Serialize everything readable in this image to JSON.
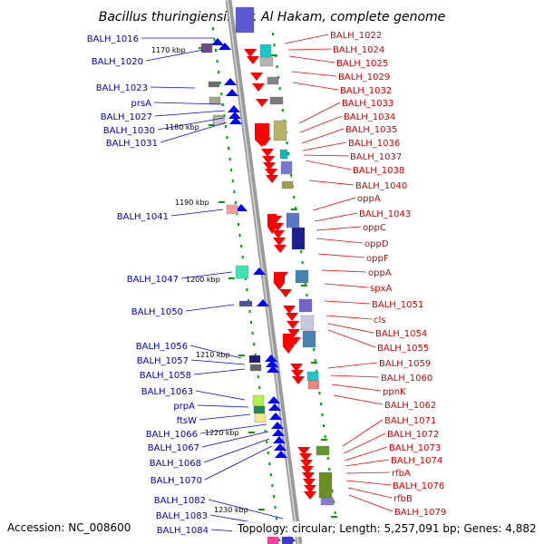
{
  "title": "Bacillus thuringiensis str. Al Hakam, complete genome",
  "footer": {
    "accession": "Accession: NC_008600",
    "summary": "Topology: circular; Length: 5,257,091 bp; Genes: 4,882"
  },
  "kbp_labels": [
    "1170 kbp",
    "1180 kbp",
    "1190 kbp",
    "1200 kbp",
    "1210 kbp",
    "1220 kbp",
    "1230 kbp"
  ],
  "left_genes": [
    "BALH_1016",
    "BALH_1020",
    "BALH_1023",
    "prsA",
    "BALH_1027",
    "BALH_1030",
    "BALH_1031",
    "BALH_1041",
    "BALH_1047",
    "BALH_1050",
    "BALH_1056",
    "BALH_1057",
    "BALH_1058",
    "BALH_1063",
    "prpA",
    "ftsW",
    "BALH_1066",
    "BALH_1067",
    "BALH_1068",
    "BALH_1070",
    "BALH_1082",
    "BALH_1083",
    "BALH_1084"
  ],
  "right_genes": [
    "BALH_1022",
    "BALH_1024",
    "BALH_1025",
    "BALH_1029",
    "BALH_1032",
    "BALH_1033",
    "BALH_1034",
    "BALH_1035",
    "BALH_1036",
    "BALH_1037",
    "BALH_1038",
    "BALH_1040",
    "oppA",
    "BALH_1043",
    "oppC",
    "oppD",
    "oppF",
    "oppA",
    "spxA",
    "BALH_1051",
    "cls",
    "BALH_1054",
    "BALH_1055",
    "BALH_1059",
    "BALH_1060",
    "ppnK",
    "BALH_1062",
    "BALH_1071",
    "BALH_1072",
    "BALH_1073",
    "BALH_1074",
    "rfbA",
    "BALH_1076",
    "rfbB",
    "BALH_1079"
  ],
  "colors": {
    "left_label": "#0000c8",
    "right_label": "#d70000",
    "forward_arrow": "#0000ff",
    "reverse_arrow": "#ff0000",
    "backbone": "#9a9a9a",
    "tick": "#00a000"
  }
}
